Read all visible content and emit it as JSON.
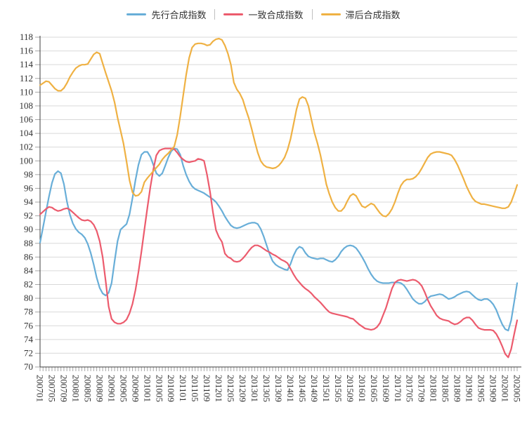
{
  "chart_data": {
    "type": "line",
    "title": "",
    "xlabel": "",
    "ylabel": "",
    "x_freq": "monthly",
    "x_start": "200701",
    "x_end": "202005",
    "ylim": [
      70,
      118
    ],
    "y_step": 2,
    "grid": true,
    "legend_position": "top-center",
    "axis_color": "#3f3f3f",
    "grid_color": "#d9d9d9",
    "tick_color": "#a6a6a6",
    "label_color": "#333333",
    "x_tick_labels": [
      "200701",
      "200705",
      "200709",
      "200801",
      "200805",
      "200809",
      "200901",
      "200905",
      "200909",
      "201001",
      "201005",
      "201009",
      "201101",
      "201105",
      "201109",
      "201201",
      "201205",
      "201209",
      "201301",
      "201305",
      "201309",
      "201401",
      "201405",
      "201409",
      "201501",
      "201505",
      "201509",
      "201601",
      "201605",
      "201609",
      "201701",
      "201705",
      "201709",
      "201801",
      "201805",
      "201809",
      "201901",
      "201905",
      "201909",
      "202001",
      "202005"
    ],
    "series": [
      {
        "name": "先行合成指数",
        "color": "#68aed8",
        "values": [
          88.1,
          90.3,
          92.6,
          94.8,
          96.8,
          98.1,
          98.5,
          98.2,
          96.6,
          94.1,
          92.2,
          90.9,
          90.1,
          89.6,
          89.3,
          88.8,
          87.9,
          86.6,
          84.9,
          83.0,
          81.5,
          80.7,
          80.4,
          80.8,
          82.2,
          85.4,
          88.3,
          90.0,
          90.4,
          90.8,
          92.2,
          94.6,
          97.2,
          99.4,
          100.9,
          101.3,
          101.3,
          100.6,
          99.4,
          98.2,
          97.8,
          98.2,
          99.3,
          100.5,
          101.4,
          101.8,
          101.7,
          100.9,
          99.3,
          98.0,
          97.0,
          96.3,
          95.9,
          95.7,
          95.5,
          95.3,
          95.0,
          94.7,
          94.4,
          94.0,
          93.4,
          92.7,
          91.9,
          91.2,
          90.6,
          90.3,
          90.2,
          90.3,
          90.5,
          90.7,
          90.9,
          91.0,
          91.0,
          90.8,
          90.1,
          89.0,
          87.7,
          86.4,
          85.4,
          84.9,
          84.6,
          84.4,
          84.2,
          84.1,
          85.0,
          86.2,
          87.1,
          87.5,
          87.3,
          86.6,
          86.1,
          85.9,
          85.8,
          85.7,
          85.8,
          85.8,
          85.6,
          85.4,
          85.3,
          85.6,
          86.1,
          86.8,
          87.3,
          87.6,
          87.7,
          87.6,
          87.3,
          86.7,
          86.0,
          85.2,
          84.3,
          83.5,
          82.9,
          82.5,
          82.3,
          82.2,
          82.2,
          82.2,
          82.3,
          82.3,
          82.3,
          82.2,
          81.9,
          81.3,
          80.6,
          79.9,
          79.5,
          79.2,
          79.2,
          79.5,
          80.0,
          80.3,
          80.4,
          80.5,
          80.6,
          80.5,
          80.2,
          79.9,
          80.0,
          80.2,
          80.5,
          80.7,
          80.9,
          81.0,
          80.9,
          80.5,
          80.1,
          79.8,
          79.7,
          79.9,
          79.9,
          79.6,
          79.1,
          78.3,
          77.2,
          76.2,
          75.5,
          75.3,
          76.8,
          79.5,
          82.2
        ]
      },
      {
        "name": "一致合成指数",
        "color": "#ec5b6d",
        "values": [
          92.2,
          92.6,
          93.0,
          93.3,
          93.2,
          92.9,
          92.7,
          92.8,
          93.0,
          93.1,
          92.9,
          92.5,
          92.1,
          91.7,
          91.4,
          91.3,
          91.4,
          91.2,
          90.7,
          89.8,
          88.3,
          86.0,
          82.5,
          78.8,
          77.0,
          76.5,
          76.3,
          76.3,
          76.5,
          76.9,
          77.8,
          79.2,
          81.2,
          83.8,
          86.8,
          90.0,
          93.2,
          96.2,
          98.8,
          100.8,
          101.5,
          101.7,
          101.8,
          101.8,
          101.8,
          101.7,
          101.2,
          100.6,
          100.2,
          99.9,
          99.8,
          99.9,
          100.0,
          100.3,
          100.2,
          100.0,
          98.0,
          95.5,
          92.5,
          89.9,
          88.9,
          88.2,
          86.5,
          86.0,
          85.8,
          85.4,
          85.3,
          85.4,
          85.8,
          86.3,
          86.9,
          87.4,
          87.7,
          87.7,
          87.5,
          87.2,
          86.9,
          86.7,
          86.4,
          86.2,
          85.9,
          85.6,
          85.4,
          85.1,
          84.3,
          83.5,
          82.8,
          82.3,
          81.8,
          81.4,
          81.1,
          80.7,
          80.2,
          79.8,
          79.4,
          78.9,
          78.4,
          78.0,
          77.8,
          77.7,
          77.6,
          77.5,
          77.4,
          77.3,
          77.1,
          77.0,
          76.6,
          76.2,
          75.9,
          75.6,
          75.5,
          75.4,
          75.5,
          75.8,
          76.4,
          77.5,
          78.6,
          80.0,
          81.4,
          82.3,
          82.6,
          82.7,
          82.6,
          82.5,
          82.6,
          82.7,
          82.6,
          82.3,
          81.8,
          80.9,
          79.8,
          78.9,
          78.2,
          77.5,
          77.1,
          76.9,
          76.8,
          76.7,
          76.4,
          76.2,
          76.3,
          76.6,
          77.0,
          77.2,
          77.2,
          76.8,
          76.2,
          75.7,
          75.5,
          75.4,
          75.4,
          75.4,
          75.3,
          74.8,
          74.0,
          73.0,
          71.9,
          71.4,
          72.6,
          74.8,
          76.8
        ]
      },
      {
        "name": "滞后合成指数",
        "color": "#efb143",
        "values": [
          111.0,
          111.3,
          111.6,
          111.5,
          111.0,
          110.5,
          110.2,
          110.2,
          110.6,
          111.3,
          112.2,
          112.9,
          113.5,
          113.8,
          114.0,
          114.0,
          114.1,
          114.8,
          115.5,
          115.8,
          115.6,
          114.2,
          112.8,
          111.5,
          110.2,
          108.5,
          106.3,
          104.4,
          102.5,
          99.9,
          97.2,
          95.4,
          94.9,
          95.0,
          95.5,
          96.9,
          97.5,
          98.0,
          98.5,
          99.0,
          99.5,
          100.2,
          100.7,
          101.1,
          101.6,
          102.1,
          103.8,
          106.5,
          109.5,
          112.5,
          115.0,
          116.5,
          117.0,
          117.1,
          117.1,
          117.0,
          116.8,
          116.9,
          117.4,
          117.7,
          117.8,
          117.6,
          116.8,
          115.6,
          114.0,
          111.4,
          110.4,
          109.8,
          108.9,
          107.5,
          106.2,
          104.6,
          102.8,
          101.2,
          100.0,
          99.4,
          99.1,
          99.0,
          98.9,
          99.0,
          99.3,
          99.8,
          100.5,
          101.6,
          103.2,
          105.3,
          107.5,
          109.0,
          109.3,
          109.1,
          108.0,
          106.0,
          104.1,
          102.6,
          100.9,
          98.8,
          96.6,
          95.2,
          94.0,
          93.2,
          92.7,
          92.7,
          93.2,
          94.1,
          94.9,
          95.2,
          94.9,
          94.1,
          93.4,
          93.2,
          93.5,
          93.8,
          93.6,
          93.0,
          92.4,
          92.0,
          91.9,
          92.3,
          93.0,
          94.0,
          95.3,
          96.4,
          97.0,
          97.3,
          97.3,
          97.4,
          97.7,
          98.2,
          98.9,
          99.7,
          100.5,
          101.0,
          101.2,
          101.3,
          101.3,
          101.2,
          101.1,
          101.0,
          100.8,
          100.2,
          99.4,
          98.4,
          97.4,
          96.3,
          95.4,
          94.6,
          94.1,
          93.9,
          93.7,
          93.7,
          93.6,
          93.5,
          93.4,
          93.3,
          93.2,
          93.1,
          93.1,
          93.3,
          94.0,
          95.2,
          96.5
        ]
      }
    ]
  }
}
